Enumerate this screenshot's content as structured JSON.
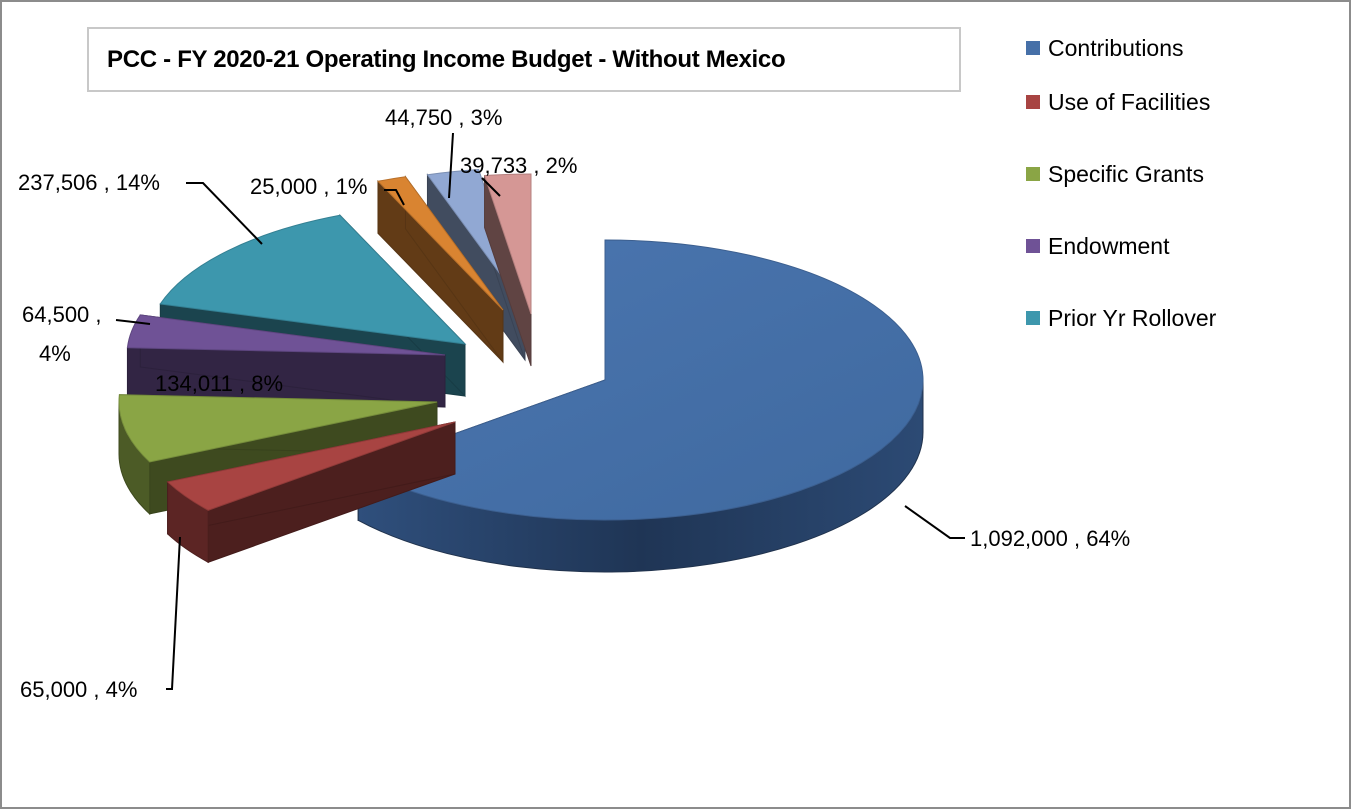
{
  "chart_data": {
    "type": "pie",
    "title": "PCC - FY 2020-21 Operating Income Budget - Without  Mexico",
    "slices": [
      {
        "name": "Contributions",
        "value": 1092000,
        "percent": 64,
        "label": "1,092,000 , 64%",
        "color": "#4670a8",
        "in_legend": true
      },
      {
        "name": "Use of Facilities",
        "value": 65000,
        "percent": 4,
        "label": "65,000 , 4%",
        "color": "#a84442",
        "in_legend": true
      },
      {
        "name": "Specific Grants",
        "value": 134011,
        "percent": 8,
        "label": "134,011 , 8%",
        "color": "#8aa545",
        "in_legend": true
      },
      {
        "name": "Endowment",
        "value": 64500,
        "percent": 4,
        "label_line1": "64,500 ,",
        "label_line2": "4%",
        "color": "#6f5296",
        "in_legend": true
      },
      {
        "name": "Prior Yr Rollover",
        "value": 237506,
        "percent": 14,
        "label": "237,506 , 14%",
        "color": "#3d97ad",
        "in_legend": true
      },
      {
        "name": "",
        "value": 25000,
        "percent": 1,
        "label": "25,000 , 1%",
        "color": "#d98431",
        "in_legend": false
      },
      {
        "name": "",
        "value": 44750,
        "percent": 3,
        "label": "44,750 , 3%",
        "color": "#91a8d3",
        "in_legend": false
      },
      {
        "name": "",
        "value": 39733,
        "percent": 2,
        "label": "39,733 , 2%",
        "color": "#d59795",
        "in_legend": false
      }
    ],
    "legend_position": "right",
    "style": "exploded 3d pie"
  },
  "legend": {
    "items": [
      {
        "label": "Contributions",
        "color": "#4670a8"
      },
      {
        "label": "Use of Facilities",
        "color": "#a84442"
      },
      {
        "label": "Specific Grants",
        "color": "#8aa545"
      },
      {
        "label": "Endowment",
        "color": "#6f5296"
      },
      {
        "label": "Prior Yr Rollover",
        "color": "#3d97ad"
      }
    ]
  }
}
